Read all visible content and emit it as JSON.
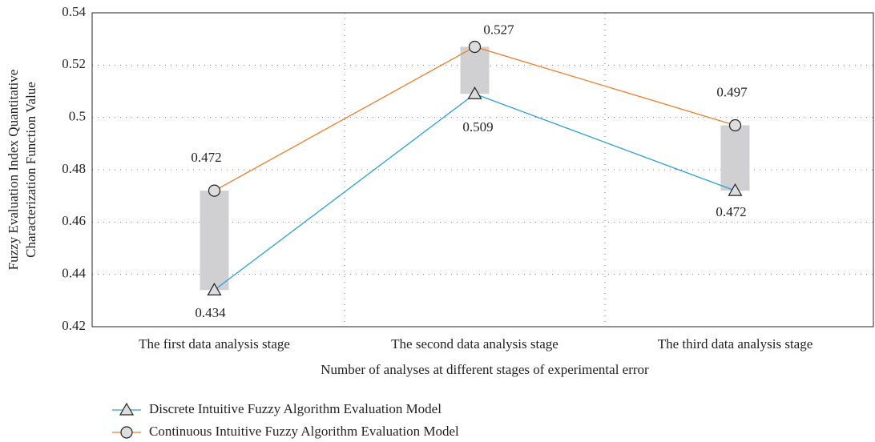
{
  "chart_data": {
    "type": "line",
    "ylabel": [
      "Fuzzy Evaluation Index Quantitative",
      "Characterization Function Value"
    ],
    "xlabel": "Number of analyses at different stages of experimental error",
    "categories": [
      "The first data analysis stage",
      "The second data analysis stage",
      "The third data analysis stage"
    ],
    "series": [
      {
        "name": "Discrete Intuitive Fuzzy Algorithm Evaluation Model",
        "color": "#2a9fd6",
        "marker": "triangle",
        "values": [
          0.434,
          0.509,
          0.472
        ]
      },
      {
        "name": "Continuous Intuitive Fuzzy Algorithm Evaluation Model",
        "color": "#f07c2a",
        "marker": "circle",
        "values": [
          0.472,
          0.527,
          0.497
        ]
      }
    ],
    "range_bar_color": "#d0d0d2",
    "ylim": [
      0.42,
      0.54
    ],
    "yticks": [
      0.42,
      0.44,
      0.46,
      0.48,
      0.5,
      0.52,
      0.54
    ],
    "grid": true
  }
}
